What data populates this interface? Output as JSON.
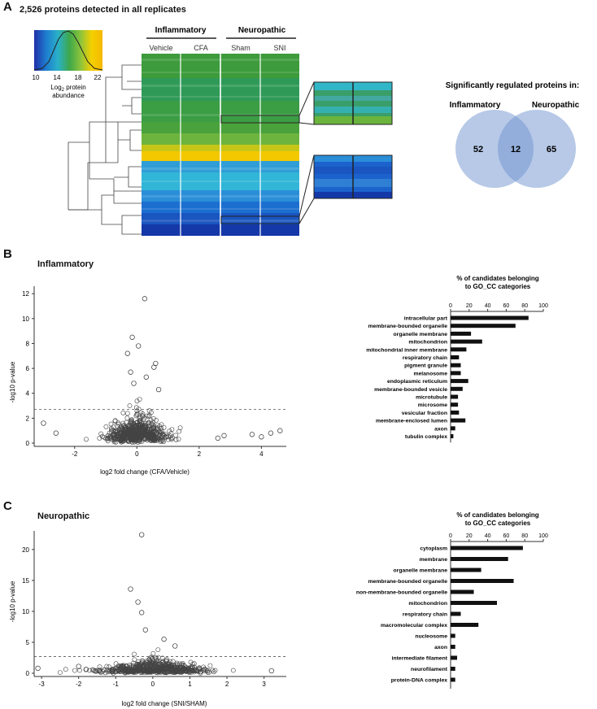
{
  "panelA": {
    "letter": "A",
    "title": "2,526 proteins detected in all replicates",
    "colorbar": {
      "ticks": [
        "10",
        "14",
        "18",
        "22"
      ],
      "label_line1": "Log",
      "label_sub": "2",
      "label_rest": " protein",
      "label_line2": "abundance",
      "colors": [
        "#1f2fa8",
        "#1e7fd0",
        "#2ab0c8",
        "#3fa848",
        "#8cc43c",
        "#f4d000",
        "#f6b800"
      ]
    },
    "groups": [
      {
        "name": "Inflammatory",
        "conditions": [
          "Vehicle",
          "CFA"
        ]
      },
      {
        "name": "Neuropathic",
        "conditions": [
          "Sham",
          "SNI"
        ]
      }
    ],
    "heatmap_colors": {
      "green": "#3a9a3c",
      "lightgreen": "#6db43e",
      "yellow": "#f2c800",
      "cyan": "#31b6d8",
      "blue": "#1c6fd0",
      "darkblue": "#1538a8"
    },
    "venn": {
      "title": "Significantly regulated proteins in:",
      "left_label": "Inflammatory",
      "right_label": "Neuropathic",
      "left_only": "52",
      "overlap": "12",
      "right_only": "65",
      "color": "#6f93d0"
    }
  },
  "panelB": {
    "letter": "B",
    "title": "Inflammatory",
    "volcano": {
      "xlabel": "log2 fold change (CFA/Vehicle)",
      "ylabel": "-log10 p-value",
      "xticks": [
        "-2",
        "0",
        "2",
        "4"
      ],
      "yticks": [
        "0",
        "2",
        "4",
        "6",
        "8",
        "10",
        "12"
      ],
      "xlim": [
        -3.3,
        4.8
      ],
      "ylim": [
        0,
        12.6
      ],
      "threshold": 2.7
    },
    "go": {
      "header_line1": "% of candidates belonging",
      "header_line2": "to GO_CC categories",
      "ticks": [
        "0",
        "20",
        "40",
        "60",
        "80",
        "100"
      ],
      "categories": [
        "intracellular part",
        "membrane-bounded organelle",
        "organelle membrane",
        "mitochondrion",
        "mitochondrial inner membrane",
        "respiratory chain",
        "pigment granule",
        "melanosome",
        "endoplasmic reticulum",
        "membrane-bounded vesicle",
        "microtubule",
        "microsome",
        "vesicular fraction",
        "membrane-enclosed lumen",
        "axon",
        "tubulin complex"
      ],
      "values": [
        84,
        70,
        22,
        34,
        17,
        9,
        11,
        11,
        19,
        13,
        8,
        8,
        9,
        16,
        5,
        3
      ]
    }
  },
  "panelC": {
    "letter": "C",
    "title": "Neuropathic",
    "volcano": {
      "xlabel": "log2 fold change (SNI/SHAM)",
      "ylabel": "-log10 p-value",
      "xticks": [
        "-3",
        "-2",
        "-1",
        "0",
        "1",
        "2",
        "3"
      ],
      "yticks": [
        "0",
        "5",
        "10",
        "15",
        "20"
      ],
      "xlim": [
        -3.2,
        3.6
      ],
      "ylim": [
        0,
        23
      ],
      "threshold": 2.7
    },
    "go": {
      "header_line1": "% of candidates belonging",
      "header_line2": "to GO_CC categories",
      "ticks": [
        "0",
        "20",
        "40",
        "60",
        "80",
        "100"
      ],
      "categories": [
        "cytoplasm",
        "membrane",
        "organelle membrane",
        "membrane-bounded organelle",
        "non-membrane-bounded organelle",
        "mitochondrion",
        "respiratory chain",
        "macromolecular complex",
        "nucleosome",
        "axon",
        "intermediate filament",
        "neurofilament",
        "protein-DNA complex"
      ],
      "values": [
        78,
        62,
        33,
        68,
        25,
        50,
        11,
        30,
        5,
        5,
        7,
        5,
        5
      ]
    }
  },
  "chart_data": [
    {
      "type": "heatmap",
      "title": "2,526 proteins detected in all replicates",
      "columns": [
        "Vehicle",
        "CFA",
        "Sham",
        "SNI"
      ],
      "groups": [
        "Inflammatory",
        "Neuropathic"
      ],
      "colorbar_range": [
        10,
        22
      ],
      "colorbar_label": "Log2 protein abundance"
    },
    {
      "type": "bar",
      "title": "Significantly regulated proteins in:",
      "categories": [
        "Inflammatory",
        "Inflammatory & Neuropathic",
        "Neuropathic"
      ],
      "values": [
        52,
        12,
        65
      ]
    },
    {
      "type": "scatter",
      "title": "Inflammatory",
      "xlabel": "log2 fold change (CFA/Vehicle)",
      "ylabel": "-log10 p-value",
      "xlim": [
        -3.3,
        4.8
      ],
      "ylim": [
        0,
        12.6
      ],
      "notable_points": {
        "x": [
          0.25,
          -0.15,
          0.05,
          -0.3,
          0.6,
          0.55,
          -0.2,
          0.3,
          -0.1,
          0.7,
          -3.0,
          -2.6,
          2.8,
          3.7,
          4.3,
          4.6,
          4.0,
          2.6
        ],
        "y": [
          11.6,
          8.5,
          7.8,
          7.2,
          6.4,
          6.1,
          5.7,
          5.3,
          4.8,
          4.3,
          1.6,
          0.8,
          0.6,
          0.7,
          0.8,
          1.0,
          0.5,
          0.4
        ]
      }
    },
    {
      "type": "bar",
      "title": "% of candidates belonging to GO_CC categories",
      "categories": [
        "intracellular part",
        "membrane-bounded organelle",
        "organelle membrane",
        "mitochondrion",
        "mitochondrial inner membrane",
        "respiratory chain",
        "pigment granule",
        "melanosome",
        "endoplasmic reticulum",
        "membrane-bounded vesicle",
        "microtubule",
        "microsome",
        "vesicular fraction",
        "membrane-enclosed lumen",
        "axon",
        "tubulin complex"
      ],
      "values": [
        84,
        70,
        22,
        34,
        17,
        9,
        11,
        11,
        19,
        13,
        8,
        8,
        9,
        16,
        5,
        3
      ],
      "ylim": [
        0,
        100
      ]
    },
    {
      "type": "scatter",
      "title": "Neuropathic",
      "xlabel": "log2 fold change (SNI/SHAM)",
      "ylabel": "-log10 p-value",
      "xlim": [
        -3.2,
        3.6
      ],
      "ylim": [
        0,
        23
      ],
      "notable_points": {
        "x": [
          -0.3,
          -0.6,
          -0.4,
          -0.3,
          -0.2,
          0.3,
          0.6,
          -3.1,
          3.2,
          -2.0,
          -1.8
        ],
        "y": [
          22.4,
          13.6,
          11.5,
          9.8,
          7.0,
          5.5,
          4.4,
          0.8,
          0.4,
          1.1,
          0.6
        ]
      }
    },
    {
      "type": "bar",
      "title": "% of candidates belonging to GO_CC categories",
      "categories": [
        "cytoplasm",
        "membrane",
        "organelle membrane",
        "membrane-bounded organelle",
        "non-membrane-bounded organelle",
        "mitochondrion",
        "respiratory chain",
        "macromolecular complex",
        "nucleosome",
        "axon",
        "intermediate filament",
        "neurofilament",
        "protein-DNA complex"
      ],
      "values": [
        78,
        62,
        33,
        68,
        25,
        50,
        11,
        30,
        5,
        5,
        7,
        5,
        5
      ],
      "ylim": [
        0,
        100
      ]
    }
  ]
}
